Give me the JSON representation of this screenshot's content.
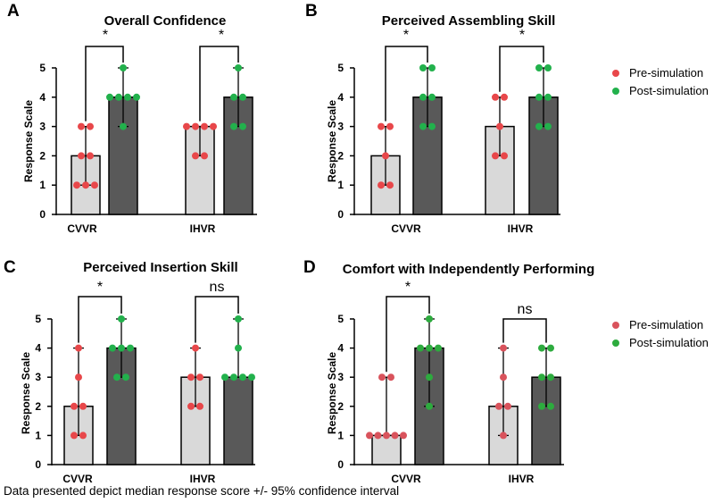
{
  "chart_data": [
    {
      "type": "bar",
      "panel": "A",
      "title": "Overall  Confidence",
      "ylabel": "Response Scale",
      "ylim": [
        0,
        5
      ],
      "yticks": [
        "0",
        "1",
        "2",
        "3",
        "4",
        "5"
      ],
      "groups": [
        {
          "name": "CVVR",
          "series": [
            {
              "name": "Pre-simulation",
              "median": 2,
              "ci": [
                1,
                3
              ],
              "points": [
                1,
                1,
                1,
                2,
                2,
                3,
                3
              ]
            },
            {
              "name": "Post-simulation",
              "median": 4,
              "ci": [
                3,
                5
              ],
              "points": [
                3,
                4,
                4,
                4,
                4,
                5
              ]
            }
          ],
          "significance": "*"
        },
        {
          "name": "IHVR",
          "series": [
            {
              "name": "Pre-simulation",
              "median": 3,
              "ci": [
                2,
                3
              ],
              "points": [
                2,
                2,
                3,
                3,
                3,
                3
              ]
            },
            {
              "name": "Post-simulation",
              "median": 4,
              "ci": [
                3,
                5
              ],
              "points": [
                3,
                3,
                4,
                4,
                5
              ]
            }
          ],
          "significance": "*"
        }
      ],
      "legend": false
    },
    {
      "type": "bar",
      "panel": "B",
      "title": "Perceived  Assembling  Skill",
      "ylabel": "Response Scale",
      "ylim": [
        0,
        5
      ],
      "yticks": [
        "0",
        "1",
        "2",
        "3",
        "4",
        "5"
      ],
      "groups": [
        {
          "name": "CVVR",
          "series": [
            {
              "name": "Pre-simulation",
              "median": 2,
              "ci": [
                1,
                3
              ],
              "points": [
                1,
                1,
                2,
                3,
                3
              ]
            },
            {
              "name": "Post-simulation",
              "median": 4,
              "ci": [
                3,
                5
              ],
              "points": [
                3,
                3,
                4,
                4,
                5,
                5
              ]
            }
          ],
          "significance": "*"
        },
        {
          "name": "IHVR",
          "series": [
            {
              "name": "Pre-simulation",
              "median": 3,
              "ci": [
                2,
                4
              ],
              "points": [
                2,
                2,
                3,
                4,
                4
              ]
            },
            {
              "name": "Post-simulation",
              "median": 4,
              "ci": [
                3,
                5
              ],
              "points": [
                3,
                3,
                4,
                4,
                5,
                5
              ]
            }
          ],
          "significance": "*"
        }
      ],
      "legend": true
    },
    {
      "type": "bar",
      "panel": "C",
      "title": "Perceived  Insertion  Skill",
      "ylabel": "Response Scale",
      "ylim": [
        0,
        5
      ],
      "yticks": [
        "0",
        "1",
        "2",
        "3",
        "4",
        "5"
      ],
      "groups": [
        {
          "name": "CVVR",
          "series": [
            {
              "name": "Pre-simulation",
              "median": 2,
              "ci": [
                1,
                4
              ],
              "points": [
                1,
                1,
                2,
                2,
                3,
                4
              ]
            },
            {
              "name": "Post-simulation",
              "median": 4,
              "ci": [
                3,
                5
              ],
              "points": [
                3,
                3,
                4,
                4,
                4,
                5
              ]
            }
          ],
          "significance": "*"
        },
        {
          "name": "IHVR",
          "series": [
            {
              "name": "Pre-simulation",
              "median": 3,
              "ci": [
                2,
                4
              ],
              "points": [
                2,
                2,
                3,
                3,
                4
              ]
            },
            {
              "name": "Post-simulation",
              "median": 3,
              "ci": [
                3,
                5
              ],
              "points": [
                3,
                3,
                3,
                3,
                4,
                5
              ]
            }
          ],
          "significance": "ns"
        }
      ],
      "legend": false
    },
    {
      "type": "bar",
      "panel": "D",
      "title": "Comfort with  Independently Performing",
      "ylabel": "Response Scale",
      "ylim": [
        0,
        5
      ],
      "yticks": [
        "0",
        "1",
        "2",
        "3",
        "4",
        "5"
      ],
      "groups": [
        {
          "name": "CVVR",
          "series": [
            {
              "name": "Pre-simulation",
              "median": 1,
              "ci": [
                1,
                3
              ],
              "points": [
                1,
                1,
                1,
                1,
                1,
                3,
                3
              ]
            },
            {
              "name": "Post-simulation",
              "median": 4,
              "ci": [
                2,
                5
              ],
              "points": [
                2,
                3,
                4,
                4,
                4,
                5
              ]
            }
          ],
          "significance": "*"
        },
        {
          "name": "IHVR",
          "series": [
            {
              "name": "Pre-simulation",
              "median": 2,
              "ci": [
                1,
                4
              ],
              "points": [
                1,
                2,
                2,
                3,
                4
              ]
            },
            {
              "name": "Post-simulation",
              "median": 3,
              "ci": [
                2,
                4
              ],
              "points": [
                2,
                2,
                3,
                3,
                4,
                4
              ]
            }
          ],
          "significance": "ns"
        }
      ],
      "legend": true
    }
  ],
  "legend": {
    "pre_label": "Pre-simulation",
    "post_label": "Post-simulation"
  },
  "colors": {
    "pre_bar": "#d9d9d9",
    "post_bar": "#595959",
    "pre_dot": "#e8474a",
    "post_dot": "#22b14c",
    "pre_dot_d": "#d9535c",
    "post_dot_d": "#2dab3e"
  },
  "caption": "Data presented depict median response score +/- 95% confidence interval"
}
